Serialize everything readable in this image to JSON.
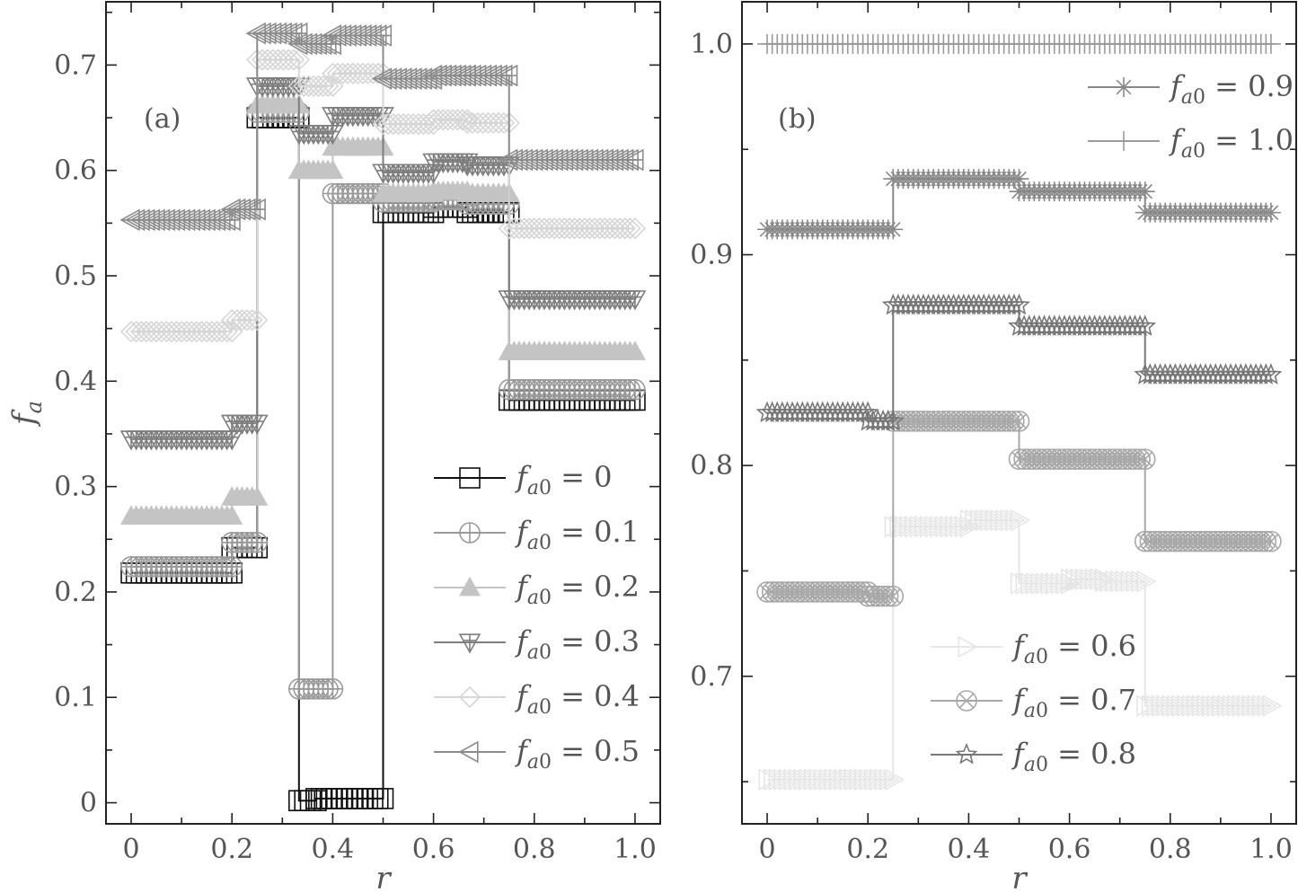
{
  "chart_data": [
    {
      "type": "line",
      "panel_label": "(a)",
      "xlabel": "r",
      "ylabel": "f_a",
      "xlim": [
        -0.05,
        1.05
      ],
      "ylim": [
        -0.02,
        0.76
      ],
      "xticks": [
        0,
        0.2,
        0.4,
        0.6,
        0.8,
        1.0
      ],
      "xtick_labels": [
        "0",
        "0.2",
        "0.4",
        "0.6",
        "0.8",
        "1.0"
      ],
      "yticks": [
        0,
        0.1,
        0.2,
        0.3,
        0.4,
        0.5,
        0.6,
        0.7
      ],
      "ytick_labels": [
        "0",
        "0.1",
        "0.2",
        "0.3",
        "0.4",
        "0.5",
        "0.6",
        "0.7"
      ],
      "legend_position": "lower-right",
      "series": [
        {
          "name": "f_a0 = 0",
          "legend_value": "0",
          "color": "#111111",
          "marker": "square",
          "segments": [
            [
              0,
              0.2,
              0.218
            ],
            [
              0.2,
              0.25,
              0.242
            ],
            [
              0.25,
              0.333,
              0.65
            ],
            [
              0.333,
              0.367,
              0.002
            ],
            [
              0.367,
              0.5,
              0.004
            ],
            [
              0.5,
              0.6,
              0.56
            ],
            [
              0.6,
              0.667,
              0.565
            ],
            [
              0.667,
              0.75,
              0.56
            ],
            [
              0.75,
              1.0,
              0.382
            ]
          ]
        },
        {
          "name": "f_a0 = 0.1",
          "legend_value": "0.1",
          "color": "#9a9a9a",
          "marker": "circle-plus",
          "segments": [
            [
              0,
              0.2,
              0.224
            ],
            [
              0.2,
              0.25,
              0.247
            ],
            [
              0.25,
              0.333,
              0.655
            ],
            [
              0.333,
              0.4,
              0.108
            ],
            [
              0.4,
              0.5,
              0.578
            ],
            [
              0.5,
              0.6,
              0.57
            ],
            [
              0.6,
              0.667,
              0.572
            ],
            [
              0.667,
              0.75,
              0.568
            ],
            [
              0.75,
              1.0,
              0.392
            ]
          ]
        },
        {
          "name": "f_a0 = 0.2",
          "legend_value": "0.2",
          "color": "#c4c4c4",
          "marker": "triangle-up",
          "segments": [
            [
              0,
              0.2,
              0.272
            ],
            [
              0.2,
              0.25,
              0.29
            ],
            [
              0.25,
              0.333,
              0.662
            ],
            [
              0.333,
              0.4,
              0.6
            ],
            [
              0.4,
              0.5,
              0.622
            ],
            [
              0.5,
              0.6,
              0.578
            ],
            [
              0.6,
              0.667,
              0.58
            ],
            [
              0.667,
              0.75,
              0.578
            ],
            [
              0.75,
              1.0,
              0.428
            ]
          ]
        },
        {
          "name": "f_a0 = 0.3",
          "legend_value": "0.3",
          "color": "#7e7e7e",
          "marker": "triangle-down-plus",
          "segments": [
            [
              0,
              0.2,
              0.345
            ],
            [
              0.2,
              0.25,
              0.36
            ],
            [
              0.25,
              0.333,
              0.68
            ],
            [
              0.333,
              0.4,
              0.635
            ],
            [
              0.4,
              0.5,
              0.652
            ],
            [
              0.5,
              0.6,
              0.598
            ],
            [
              0.6,
              0.667,
              0.608
            ],
            [
              0.667,
              0.75,
              0.605
            ],
            [
              0.75,
              1.0,
              0.478
            ]
          ]
        },
        {
          "name": "f_a0 = 0.4",
          "legend_value": "0.4",
          "color": "#d6d6d6",
          "marker": "diamond",
          "segments": [
            [
              0,
              0.2,
              0.447
            ],
            [
              0.2,
              0.25,
              0.458
            ],
            [
              0.25,
              0.333,
              0.705
            ],
            [
              0.333,
              0.4,
              0.68
            ],
            [
              0.4,
              0.5,
              0.692
            ],
            [
              0.5,
              0.6,
              0.644
            ],
            [
              0.6,
              0.667,
              0.648
            ],
            [
              0.667,
              0.75,
              0.645
            ],
            [
              0.75,
              1.0,
              0.545
            ]
          ]
        },
        {
          "name": "f_a0 = 0.5",
          "legend_value": "0.5",
          "color": "#8c8c8c",
          "marker": "triangle-left",
          "segments": [
            [
              0,
              0.2,
              0.553
            ],
            [
              0.2,
              0.25,
              0.563
            ],
            [
              0.25,
              0.333,
              0.73
            ],
            [
              0.333,
              0.4,
              0.72
            ],
            [
              0.4,
              0.5,
              0.728
            ],
            [
              0.5,
              0.6,
              0.687
            ],
            [
              0.6,
              0.667,
              0.69
            ],
            [
              0.667,
              0.75,
              0.69
            ],
            [
              0.75,
              1.0,
              0.61
            ]
          ]
        }
      ]
    },
    {
      "type": "line",
      "panel_label": "(b)",
      "xlabel": "r",
      "ylabel": "",
      "xlim": [
        -0.05,
        1.05
      ],
      "ylim": [
        0.63,
        1.02
      ],
      "xticks": [
        0,
        0.2,
        0.4,
        0.6,
        0.8,
        1.0
      ],
      "xtick_labels": [
        "0",
        "0.2",
        "0.4",
        "0.6",
        "0.8",
        "1.0"
      ],
      "yticks": [
        0.7,
        0.8,
        0.9,
        1.0
      ],
      "ytick_labels": [
        "0.7",
        "0.8",
        "0.9",
        "1.0"
      ],
      "legend_position": "top-right and lower-middle",
      "series": [
        {
          "name": "f_a0 = 0.6",
          "legend_value": "0.6",
          "color": "#e6e6e6",
          "marker": "triangle-right",
          "segments": [
            [
              0,
              0.25,
              0.651
            ],
            [
              0.25,
              0.4,
              0.771
            ],
            [
              0.4,
              0.5,
              0.774
            ],
            [
              0.5,
              0.6,
              0.744
            ],
            [
              0.6,
              0.667,
              0.746
            ],
            [
              0.667,
              0.75,
              0.745
            ],
            [
              0.75,
              1.0,
              0.686
            ]
          ]
        },
        {
          "name": "f_a0 = 0.7",
          "legend_value": "0.7",
          "color": "#a8a8a8",
          "marker": "circle-x",
          "segments": [
            [
              0,
              0.2,
              0.74
            ],
            [
              0.2,
              0.25,
              0.738
            ],
            [
              0.25,
              0.5,
              0.821
            ],
            [
              0.5,
              0.75,
              0.803
            ],
            [
              0.75,
              1.0,
              0.764
            ]
          ]
        },
        {
          "name": "f_a0 = 0.8",
          "legend_value": "0.8",
          "color": "#777777",
          "marker": "star",
          "segments": [
            [
              0,
              0.2,
              0.825
            ],
            [
              0.2,
              0.25,
              0.821
            ],
            [
              0.25,
              0.5,
              0.876
            ],
            [
              0.5,
              0.75,
              0.866
            ],
            [
              0.75,
              1.0,
              0.843
            ]
          ]
        },
        {
          "name": "f_a0 = 0.9",
          "legend_value": "0.9",
          "color": "#888888",
          "marker": "asterisk",
          "segments": [
            [
              0,
              0.25,
              0.912
            ],
            [
              0.25,
              0.5,
              0.936
            ],
            [
              0.5,
              0.75,
              0.93
            ],
            [
              0.75,
              1.0,
              0.92
            ]
          ]
        },
        {
          "name": "f_a0 = 1.0",
          "legend_value": "1.0",
          "color": "#9a9a9a",
          "marker": "plus",
          "segments": [
            [
              0,
              1.0,
              1.0
            ]
          ]
        }
      ]
    }
  ]
}
